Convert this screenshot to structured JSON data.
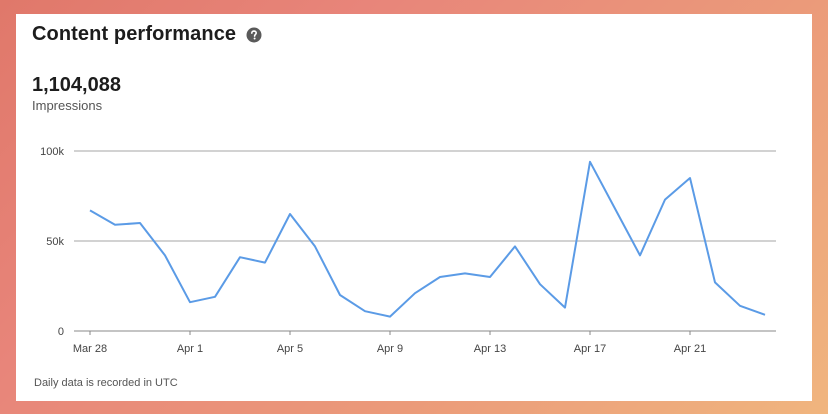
{
  "card": {
    "title": "Content performance",
    "help_icon": "question-circle-icon",
    "metric_value": "1,104,088",
    "metric_label": "Impressions",
    "footnote": "Daily data is recorded in UTC"
  },
  "colors": {
    "line": "#5b9be6",
    "grid": "#b8b8b8",
    "axis": "#888888"
  },
  "chart_data": {
    "type": "line",
    "x": [
      "Mar 28",
      "Mar 29",
      "Mar 30",
      "Mar 31",
      "Apr 1",
      "Apr 2",
      "Apr 3",
      "Apr 4",
      "Apr 5",
      "Apr 6",
      "Apr 7",
      "Apr 8",
      "Apr 9",
      "Apr 10",
      "Apr 11",
      "Apr 12",
      "Apr 13",
      "Apr 14",
      "Apr 15",
      "Apr 16",
      "Apr 17",
      "Apr 18",
      "Apr 19",
      "Apr 20",
      "Apr 21",
      "Apr 22",
      "Apr 23",
      "Apr 24"
    ],
    "series": [
      {
        "values": [
          67000,
          59000,
          60000,
          42000,
          16000,
          19000,
          41000,
          38000,
          65000,
          47000,
          20000,
          11000,
          8000,
          21000,
          30000,
          32000,
          30000,
          47000,
          26000,
          13000,
          94000,
          68000,
          42000,
          73000,
          85000,
          27000,
          14000,
          9000
        ]
      }
    ],
    "x_ticks": [
      "Mar 28",
      "Apr 1",
      "Apr 5",
      "Apr 9",
      "Apr 13",
      "Apr 17",
      "Apr 21"
    ],
    "y_ticks": [
      0,
      50000,
      100000
    ],
    "y_tick_labels": [
      "0",
      "50k",
      "100k"
    ],
    "ylim": [
      0,
      100000
    ],
    "grid": true,
    "title": "",
    "xlabel": "",
    "ylabel": ""
  }
}
